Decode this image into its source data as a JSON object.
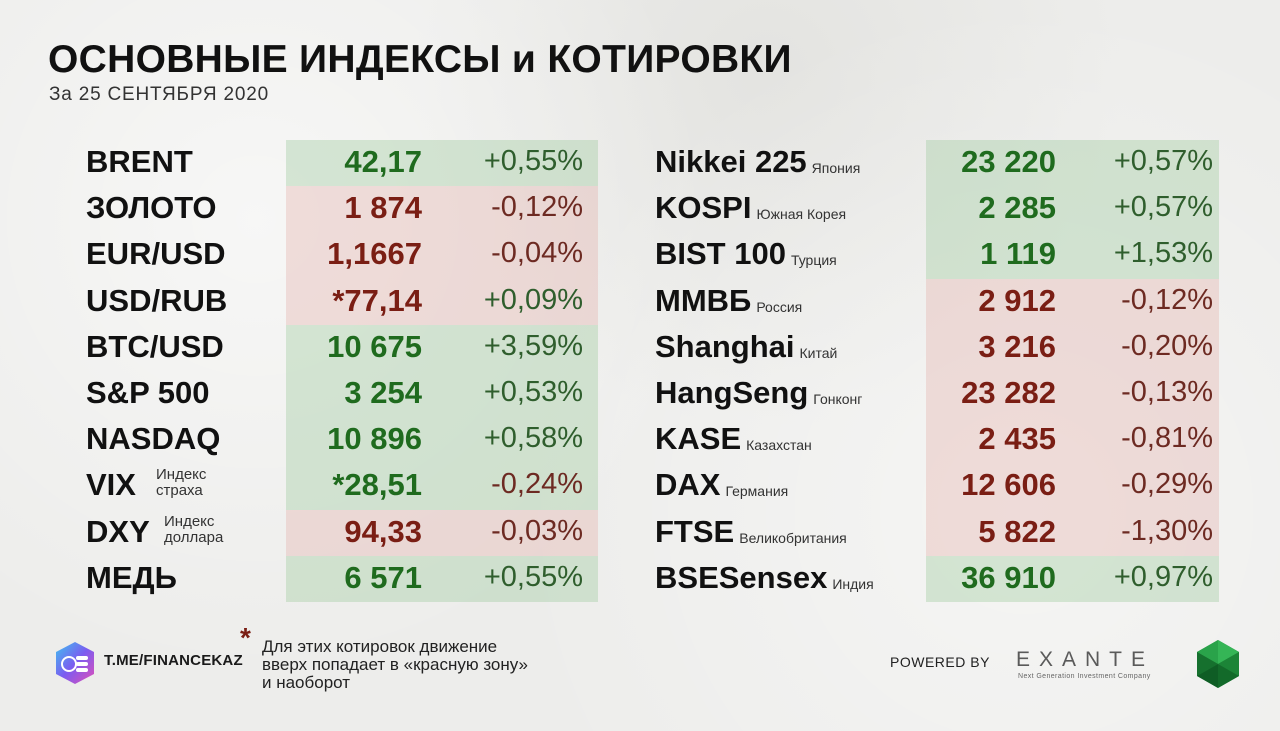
{
  "header": {
    "title": "ОСНОВНЫЕ ИНДЕКСЫ и КОТИРОВКИ",
    "date": "За 25 СЕНТЯБРЯ 2020"
  },
  "left_table": [
    {
      "name": "BRENT",
      "sub": "",
      "value": "42,17",
      "change": "+0,55%",
      "status": "pos"
    },
    {
      "name": "ЗОЛОТО",
      "sub": "",
      "value": "1 874",
      "change": "-0,12%",
      "status": "neg"
    },
    {
      "name": "EUR/USD",
      "sub": "",
      "value": "1,1667",
      "change": "-0,04%",
      "status": "neg"
    },
    {
      "name": "USD/RUB",
      "sub": "",
      "value": "*77,14",
      "change": "+0,09%",
      "status": "neg"
    },
    {
      "name": "BTC/USD",
      "sub": "",
      "value": "10 675",
      "change": "+3,59%",
      "status": "pos"
    },
    {
      "name": "S&P 500",
      "sub": "",
      "value": "3 254",
      "change": "+0,53%",
      "status": "pos"
    },
    {
      "name": "NASDAQ",
      "sub": "",
      "value": "10 896",
      "change": "+0,58%",
      "status": "pos"
    },
    {
      "name": "VIX",
      "sub_line1": "Индекс",
      "sub_line2": "страха",
      "value": "*28,51",
      "change": "-0,24%",
      "status": "pos"
    },
    {
      "name": "DXY",
      "sub_line1": "Индекс",
      "sub_line2": "доллара",
      "value": "94,33",
      "change": "-0,03%",
      "status": "neg"
    },
    {
      "name": "МЕДЬ",
      "sub": "",
      "value": "6 571",
      "change": "+0,55%",
      "status": "pos"
    }
  ],
  "right_table": [
    {
      "name": "Nikkei 225",
      "country": "Япония",
      "value": "23 220",
      "change": "+0,57%",
      "status": "pos"
    },
    {
      "name": "KOSPI",
      "country": "Южная Корея",
      "value": "2 285",
      "change": "+0,57%",
      "status": "pos"
    },
    {
      "name": "BIST 100",
      "country": "Турция",
      "value": "1 119",
      "change": "+1,53%",
      "status": "pos"
    },
    {
      "name": "ММВБ",
      "country": "Россия",
      "value": "2 912",
      "change": "-0,12%",
      "status": "neg"
    },
    {
      "name": "Shanghai",
      "country": "Китай",
      "value": "3 216",
      "change": "-0,20%",
      "status": "neg"
    },
    {
      "name": "HangSeng",
      "country": "Гонконг",
      "value": "23 282",
      "change": "-0,13%",
      "status": "neg"
    },
    {
      "name": "KASE",
      "country": "Казахстан",
      "value": "2 435",
      "change": "-0,81%",
      "status": "neg"
    },
    {
      "name": "DAX",
      "country": "Германия",
      "value": "12 606",
      "change": "-0,29%",
      "status": "neg"
    },
    {
      "name": "FTSE",
      "country": "Великобритания",
      "value": "5 822",
      "change": "-1,30%",
      "status": "neg"
    },
    {
      "name": "BSESensex",
      "country": "Индия",
      "value": "36 910",
      "change": "+0,97%",
      "status": "pos"
    }
  ],
  "footer": {
    "channel": "T.ME/FINANCEKAZ",
    "asterisk": "*",
    "note_lines": [
      "Для этих котировок движение",
      "вверх попадает в «красную зону»",
      "и наоборот"
    ],
    "powered_by": "POWERED BY",
    "brand": "EXANTE",
    "brand_tagline": "Next Generation Investment Company",
    "logo_icon": "coin-stack-icon",
    "brand_logo_icon": "green-gem-icon"
  },
  "colors": {
    "positive_text": "#1f6b1e",
    "negative_text": "#7a1e14",
    "positive_bg": "#c6dcc3",
    "negative_bg": "#e6cbc6"
  }
}
